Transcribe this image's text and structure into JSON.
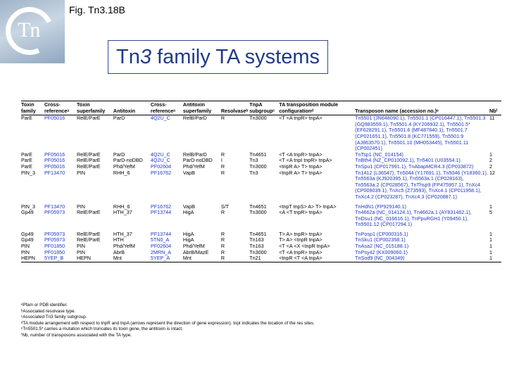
{
  "fig_label": "Fig. Tn3.18B",
  "logo_text": "Tn",
  "title": {
    "pre": "Tn",
    "italic": "3",
    "post": " family TA systems"
  },
  "table": {
    "headers": [
      "Toxin family",
      "Cross-referenceᵃ",
      "Toxin superfamily",
      "Antitoxin",
      "Cross-referenceᵃ",
      "Antitoxin superfamily",
      "Resolvaseᵇ",
      "TnpA subgroupᶜ",
      "TA transposition module configurationᵈ",
      "Transposon name (accession no.)ᵉ",
      "Nbᶠ"
    ],
    "rows": [
      [
        "ParE",
        "PF05016",
        "RelE/ParE",
        "ParD",
        "4Q2U_C",
        "RelB/ParD",
        "R",
        "Tn3000",
        "<T <A tnpR> tnpA>",
        "Tn5501 (JN648090.1), Tn5501.1 (CP016447.1), Tn5501.3 (GQ983559.1), Tn5501.4 (KY206932.1), Tn5501.5* (EF628291.1), Tn5501.6 (MF487840.1), Tn5501.7 (CP021651.1), Tn5501.8 (KC771559), Tn5501.9 (AJ863570.1), Tn5501.10 (MH053445), Tn5501.11 (CP002451)",
        "11"
      ],
      [
        "ParE",
        "PF05016",
        "RelE/ParE",
        "ParD",
        "4Q2U_C",
        "RelB/ParD",
        "R",
        "Tn4651",
        "<T <A tnpR> tnpA>",
        "TnTsp1 (NC_014154)",
        "1"
      ],
      [
        "ParE",
        "PF05016",
        "RelE/ParE",
        "ParD-noDBD",
        "4Q2U_C",
        "ParD-noDBD",
        "I",
        "Tn3",
        "<T <A tnpI tnpR> tnpA>",
        "TnBth4 (NZ_CP010092.1), Tn5401 (U03554.1)",
        "2"
      ],
      [
        "ParE",
        "PF05016",
        "RelE/ParE",
        "Phd/YefM",
        "PF02604",
        "Phd/YefM",
        "R",
        "Tn3000",
        "<tnpR A> T> tnpA>",
        "TnSpu1 (CP017991.1), TnAbapMCR4.3 (CP033872)",
        "2"
      ],
      [
        "PIN_3",
        "PF13470",
        "PIN",
        "RHH_6",
        "PF16762",
        "VapB",
        "R",
        "Tn3",
        "<tnpR A> T> tnpA>",
        "Tn1412 (L36547), Tn5044 (Y17691.1), Tn5046 (Y18360.1), Tn5563a (KJ920395.1), Tn5563a.1 (CP028163), Tn5563a.2 (CP028567), TnThsp9 (FP475957.1), TnXc4 (CP009039.1), TnXc5 (Z73593), TnXc4.1 (CP011958.1), TnXc4.2 (CP023287), TnXc4.3 (CP020887.1)",
        "12"
      ],
      [
        "PIN_3",
        "PF13470",
        "PIN",
        "RHH_6",
        "PF16762",
        "VapB",
        "S/T",
        "Tn4651",
        "<tnpT tnpS> A> T> tnpA>",
        "TnHdN1 (FP929140.1)",
        "1"
      ],
      [
        "Gp49",
        "PF05973",
        "RelE/ParE",
        "HTH_37",
        "PF13744",
        "HigA",
        "R",
        "Tn3000",
        "<A <T tnpR> tnpA>",
        "Tn4662a (NC_014124.1), Tn4662a.1 (AY831462.1), TnDsu1 (NC_016616.1), TnPpuRGH1 (Y09450.1), Tn5501.12 (CP017294.1)",
        "5"
      ],
      [
        "Gp49",
        "PF05973",
        "RelE/ParE",
        "HTH_37",
        "PF13744",
        "HigA",
        "R",
        "Tn4651",
        "T> A> tnpR> tnpA>",
        "TnPosp1 (CP000316.1)",
        "1"
      ],
      [
        "Gp49",
        "PF05973",
        "RelE/ParE",
        "HTH",
        "5TN0_A",
        "HigA",
        "R",
        "Tn163",
        "T> A> <tnpR tnpA>",
        "TnSku1 (CP002358.1)",
        "1"
      ],
      [
        "PIN",
        "PF01850",
        "PIN",
        "Phd/YefM",
        "PF02604",
        "Phd/YefM",
        "R",
        "Tn163",
        "<T <A <X <tnpR tnpA>",
        "TnAsa2 (NC_015188.1)",
        "1"
      ],
      [
        "PIN",
        "PF01850",
        "PIN",
        "AbrB",
        "2MRN_A",
        "AbrB/MazE",
        "R",
        "Tn3000",
        "<T <A tnpR> tnpA>",
        "TnPsy42 (KX009060.1)",
        "1"
      ],
      [
        "HEPN",
        "5YEP_B",
        "HEPN",
        "Mnt",
        "5YEP_A",
        "Mnt",
        "R",
        "Tn21",
        "<tnpR <T <A tnpA>",
        "TnSod9 (NC_004349)",
        "1"
      ]
    ]
  },
  "footnotes": [
    "ᵃPfam or PDB identifier.",
    "ᵇAssociated resolvase type.",
    "ᶜAssociated Tn3 family subgroup.",
    "ᵈTA module arrangement with respect to tnpR and tnpA (arrows represent the direction of gene expression). tnpI indicates the location of the res sites.",
    "ᵉTn5501.5* carries a mutation which truncates its toxin gene, the antitoxin is intact.",
    "ᶠNb, number of transposons associated with the TA type."
  ],
  "colors": {
    "title_text": "#1f3a86",
    "title_border": "#2e4a8c",
    "link_blue": "#1f36c4"
  }
}
